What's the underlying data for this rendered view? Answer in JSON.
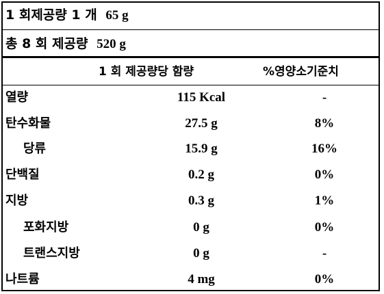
{
  "serving": {
    "per_serving": {
      "prefix": "1 회제공량 1 개",
      "value": "65 g"
    },
    "total": {
      "prefix": "총 8 회 제공량",
      "value": "520 g"
    }
  },
  "table": {
    "header_amount": "1 회 제공량당  함량",
    "header_percent": "%영양소기준치",
    "rows": [
      {
        "name": "열량",
        "amount": "115 Kcal",
        "percent": "-"
      },
      {
        "name": "탄수화물",
        "amount": "27.5 g",
        "percent": "8%"
      },
      {
        "name": "당류",
        "amount": "15.9 g",
        "percent": "16%"
      },
      {
        "name": "단백질",
        "amount": "0.2 g",
        "percent": "0%"
      },
      {
        "name": "지방",
        "amount": "0.3 g",
        "percent": "1%"
      },
      {
        "name": "포화지방",
        "amount": "0 g",
        "percent": "0%"
      },
      {
        "name": "트랜스지방",
        "amount": "0 g",
        "percent": "-"
      },
      {
        "name": "나트륨",
        "amount": "4 mg",
        "percent": "0%"
      }
    ]
  }
}
